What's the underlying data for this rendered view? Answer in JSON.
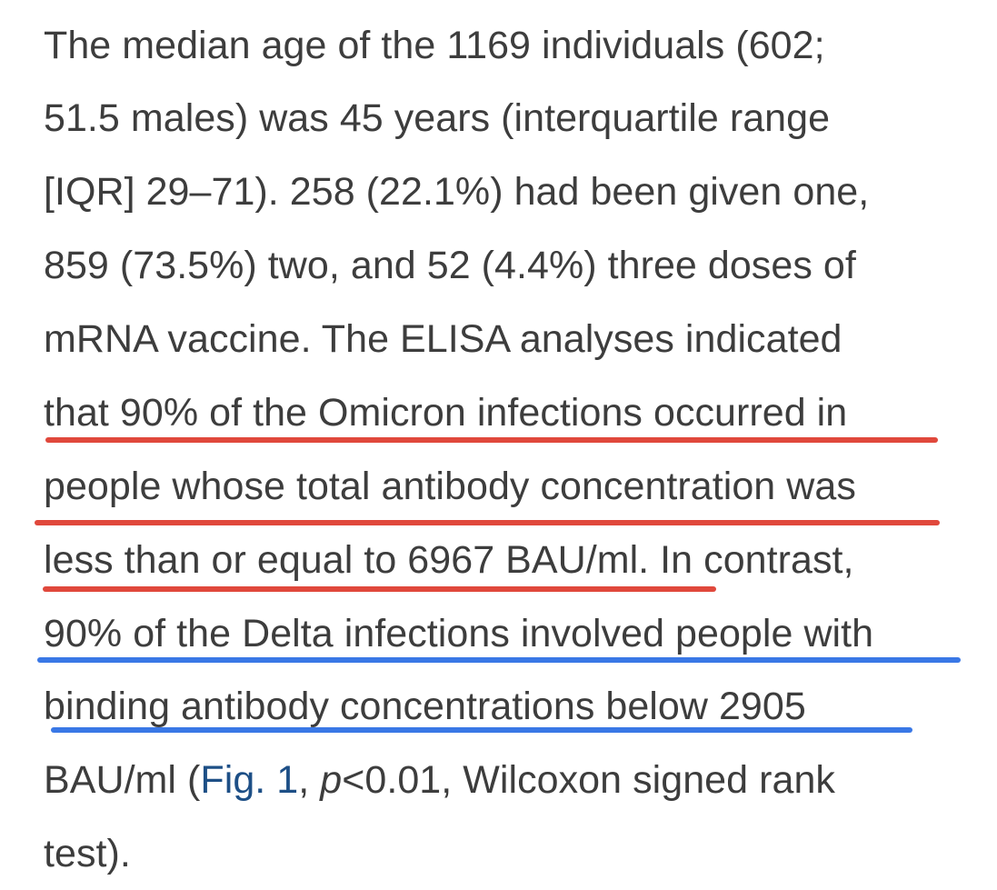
{
  "paragraph": {
    "lines": [
      "The median age of the 1169 individuals (602;",
      "51.5 males) was 45 years (interquartile range",
      "[IQR] 29–71). 258 (22.1%) had been given one,",
      "859 (73.5%) two, and 52 (4.4%) three doses of",
      "mRNA vaccine. The ELISA analyses indicated",
      "that 90% of the Omicron infections occurred in",
      "people whose total antibody concentration was",
      "less than or equal to 6967 BAU/ml. In contrast,",
      "90% of the Delta infections involved people with",
      "binding antibody concentrations below 2905 "
    ],
    "line11": {
      "before_link": "BAU/ml (",
      "link": "Fig. 1",
      "after_link": ", ",
      "italic": "p",
      "after_italic": "<0.01, Wilcoxon signed rank"
    },
    "line12": "test)."
  },
  "highlights": {
    "omicron_color": "#e0483c",
    "delta_color": "#3a78e6"
  },
  "colors": {
    "text": "#3d3d3d",
    "link": "#1d4f86",
    "background": "#ffffff"
  }
}
